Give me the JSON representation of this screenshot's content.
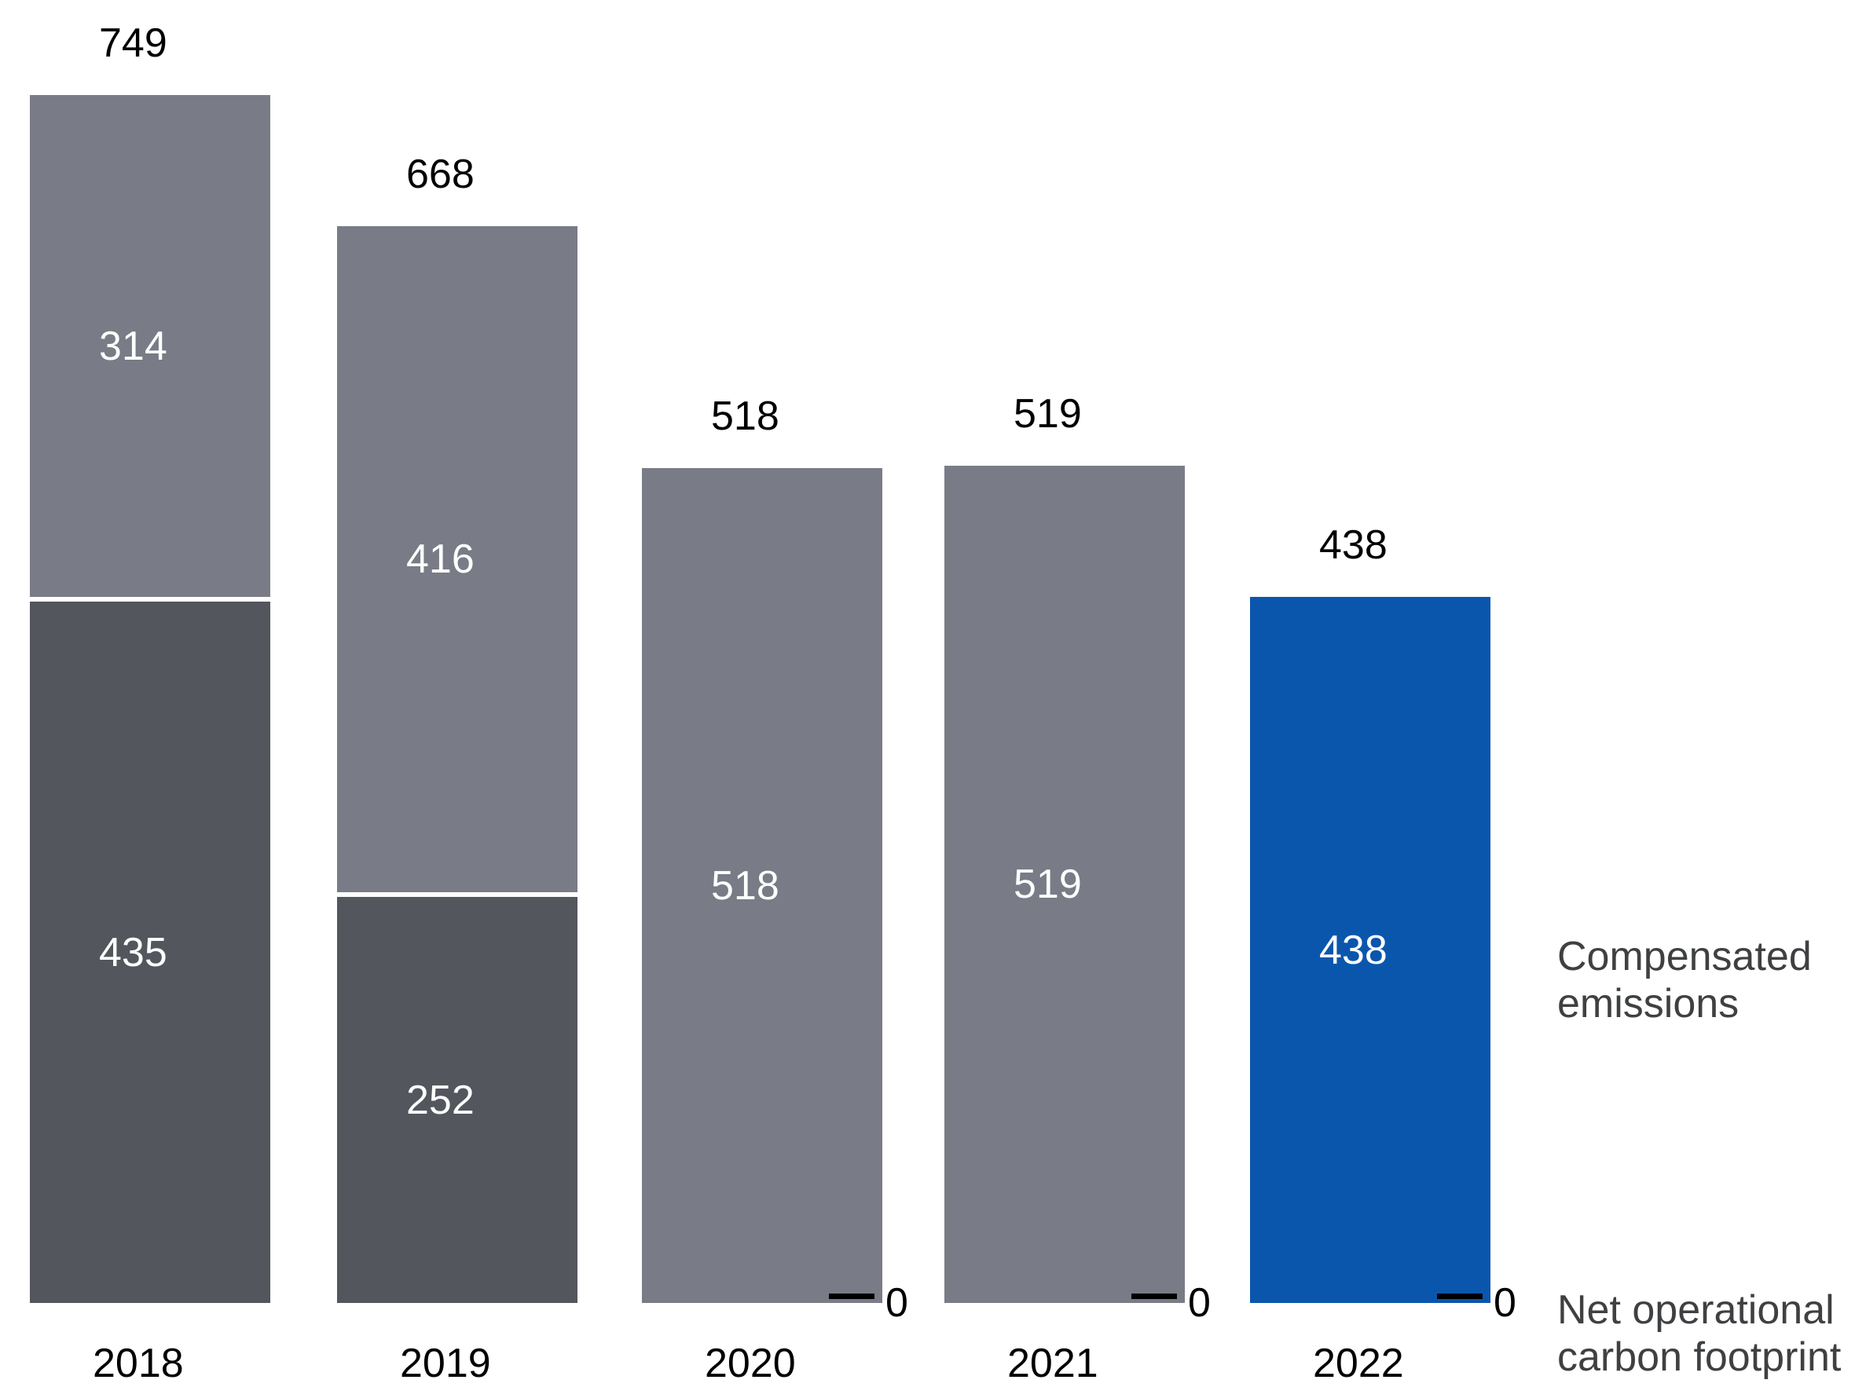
{
  "chart_data": {
    "type": "bar",
    "stacked": true,
    "title": "",
    "xlabel": "",
    "ylabel": "",
    "categories": [
      "2018",
      "2019",
      "2020",
      "2021",
      "2022"
    ],
    "series": [
      {
        "name": "Compensated emissions",
        "values": [
          314,
          416,
          518,
          519,
          438
        ],
        "colors": [
          "#797b86",
          "#797b86",
          "#797b86",
          "#797b86",
          "#0b56ad"
        ]
      },
      {
        "name": "Net operational carbon footprint",
        "values": [
          435,
          252,
          0,
          0,
          0
        ],
        "colors": [
          "#54565e",
          "#54565e",
          "#54565e",
          "#54565e",
          "#54565e"
        ]
      }
    ],
    "totals": [
      749,
      668,
      518,
      519,
      438
    ],
    "zero_markers": [
      false,
      false,
      true,
      true,
      true
    ],
    "zero_marker_label": "0",
    "legend": [
      {
        "label": "Compensated emissions"
      },
      {
        "label": "Net operational carbon footprint"
      }
    ],
    "legend_position": "right",
    "grid": false,
    "ylim": [
      0,
      780
    ],
    "colors": {
      "accent_blue": "#0b56ad",
      "bar_gray": "#797b86",
      "bar_dark_gray": "#54565e",
      "segment_divider": "#ffffff",
      "value_label_inside": "#ffffff",
      "value_label_outside": "#000000",
      "legend_text": "#3f4042",
      "background": "#ffffff"
    }
  }
}
